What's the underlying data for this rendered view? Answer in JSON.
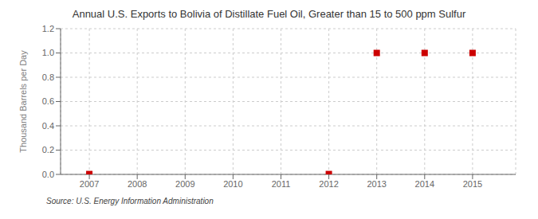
{
  "chart_data": {
    "type": "scatter",
    "title": "Annual U.S. Exports to Bolivia of Distillate Fuel Oil, Greater than 15 to 500 ppm Sulfur",
    "y_label": "Thousand Barrels per Day",
    "annotations": [
      "Source: U.S. Energy Information Administration"
    ],
    "x": [
      2007,
      2012,
      2013,
      2014,
      2015
    ],
    "values": [
      0.003,
      0.003,
      1.0,
      1.0,
      1.0
    ],
    "color": "#cc0000",
    "marker": "square",
    "xlim": [
      2006.4,
      2015.9
    ],
    "ylim": [
      0.0,
      1.2
    ],
    "xticks": [
      2007,
      2008,
      2009,
      2010,
      2011,
      2012,
      2013,
      2014,
      2015
    ],
    "yticks": [
      {
        "value": 0,
        "label": "0.0"
      },
      0.2,
      0.4,
      0.6,
      0.8,
      {
        "value": 1,
        "label": "1.0"
      },
      1.2
    ],
    "grid": true
  }
}
